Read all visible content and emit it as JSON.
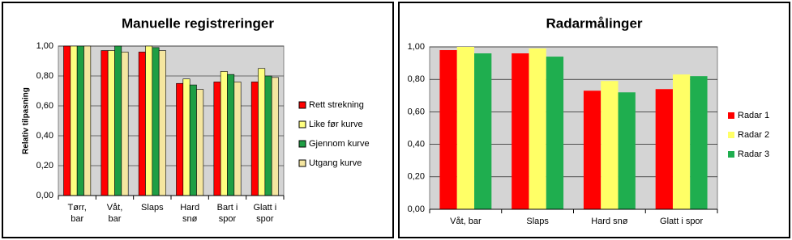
{
  "chart_data": [
    {
      "type": "bar",
      "title": "Manuelle registreringer",
      "y_label": "Relativ tilpasning",
      "categories": [
        "Tørr, bar",
        "Våt, bar",
        "Slaps",
        "Hard snø",
        "Bart i spor",
        "Glatt i spor"
      ],
      "series": [
        {
          "name": "Rett strekning",
          "color": "#ff0000",
          "values": [
            1.0,
            0.97,
            0.96,
            0.75,
            0.76,
            0.76
          ]
        },
        {
          "name": "Like før kurve",
          "color": "#ffff80",
          "values": [
            1.0,
            0.97,
            1.0,
            0.78,
            0.83,
            0.85
          ]
        },
        {
          "name": "Gjennom kurve",
          "color": "#1f9e44",
          "values": [
            1.0,
            1.0,
            0.99,
            0.74,
            0.81,
            0.8
          ]
        },
        {
          "name": "Utgang kurve",
          "color": "#f5e6a0",
          "values": [
            1.0,
            0.96,
            0.97,
            0.71,
            0.76,
            0.79
          ]
        }
      ],
      "ylim": [
        0,
        1
      ],
      "yticks": [
        {
          "value": 0,
          "label": "0,00"
        },
        {
          "value": 0.2,
          "label": "0,20"
        },
        {
          "value": 0.4,
          "label": "0,40"
        },
        {
          "value": 0.6,
          "label": "0,60"
        },
        {
          "value": 0.8,
          "label": "0,80"
        },
        {
          "value": 1,
          "label": "1,00"
        }
      ],
      "legend": "right"
    },
    {
      "type": "bar",
      "title": "Radarmålinger",
      "categories": [
        "Våt, bar",
        "Slaps",
        "Hard snø",
        "Glatt i spor"
      ],
      "series": [
        {
          "name": "Radar 1",
          "color": "#ff0000",
          "values": [
            0.98,
            0.96,
            0.73,
            0.74
          ]
        },
        {
          "name": "Radar 2",
          "color": "#ffff66",
          "values": [
            1.0,
            0.99,
            0.79,
            0.83
          ]
        },
        {
          "name": "Radar 3",
          "color": "#1fae4f",
          "values": [
            0.96,
            0.94,
            0.72,
            0.82
          ]
        }
      ],
      "ylim": [
        0,
        1
      ],
      "yticks": [
        {
          "value": 0,
          "label": "0,00"
        },
        {
          "value": 0.2,
          "label": "0,20"
        },
        {
          "value": 0.4,
          "label": "0,40"
        },
        {
          "value": 0.6,
          "label": "0,60"
        },
        {
          "value": 0.8,
          "label": "0,80"
        },
        {
          "value": 1,
          "label": "1,00"
        }
      ],
      "legend": "right"
    }
  ]
}
